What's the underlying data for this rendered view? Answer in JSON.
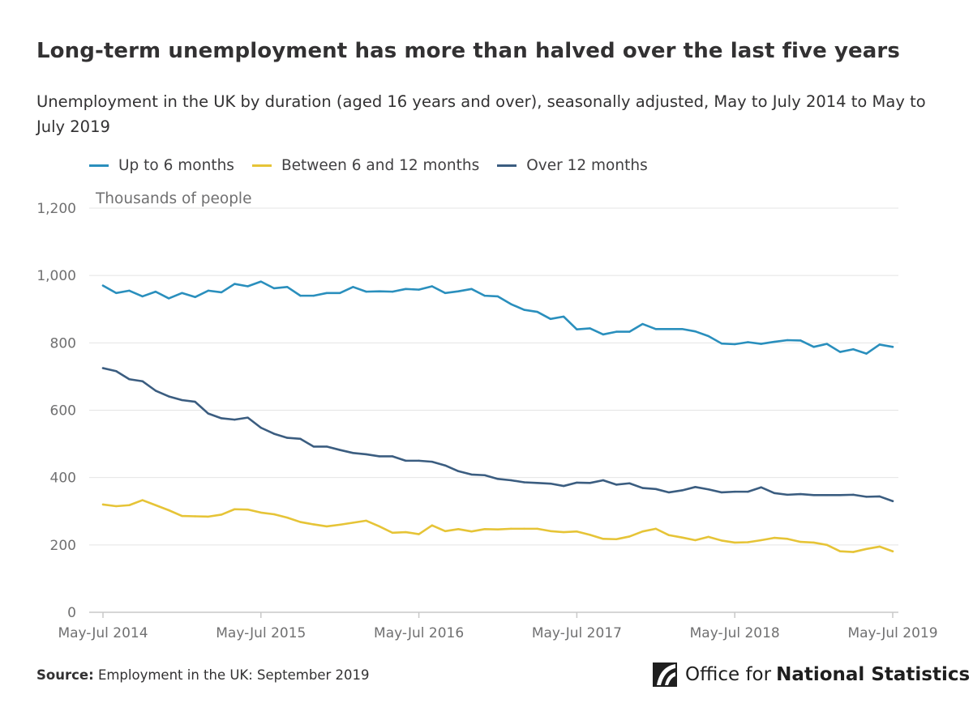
{
  "title": "Long-term unemployment has more than halved over the last five years",
  "subtitle": "Unemployment in the UK by duration (aged 16 years and over), seasonally adjusted, May to July 2014 to May to July 2019",
  "source": {
    "label": "Source:",
    "text": "Employment in the UK: September 2019"
  },
  "logo": {
    "text_light": "Office for",
    "text_bold": "National Statistics"
  },
  "colors": {
    "up_to_6": "#2a8fbd",
    "six_to_12": "#e6c437",
    "over_12": "#3b5d80",
    "grid": "#e4e4e4",
    "axis": "#c8c8c8"
  },
  "chart_data": {
    "type": "line",
    "ylabel": "Thousands of people",
    "ylim": [
      0,
      1200
    ],
    "yticks": [
      0,
      200,
      400,
      600,
      800,
      1000,
      1200
    ],
    "ytick_labels": [
      "0",
      "200",
      "400",
      "600",
      "800",
      "1,000",
      "1,200"
    ],
    "xticks": [
      {
        "index": 0,
        "label": "May-Jul 2014"
      },
      {
        "index": 12,
        "label": "May-Jul 2015"
      },
      {
        "index": 24,
        "label": "May-Jul 2016"
      },
      {
        "index": 36,
        "label": "May-Jul 2017"
      },
      {
        "index": 48,
        "label": "May-Jul 2018"
      },
      {
        "index": 60,
        "label": "May-Jul 2019"
      }
    ],
    "legend_position": "top-left",
    "grid": true,
    "series": [
      {
        "name": "Up to 6 months",
        "color": "#2a8fbd",
        "values": [
          970,
          948,
          955,
          938,
          952,
          932,
          948,
          936,
          955,
          950,
          975,
          968,
          982,
          962,
          966,
          940,
          940,
          948,
          948,
          966,
          952,
          953,
          952,
          960,
          958,
          968,
          948,
          953,
          960,
          940,
          938,
          915,
          898,
          892,
          871,
          878,
          840,
          843,
          825,
          833,
          833,
          856,
          841,
          841,
          841,
          834,
          820,
          798,
          796,
          802,
          797,
          803,
          808,
          807,
          788,
          797,
          773,
          781,
          768,
          795,
          788
        ]
      },
      {
        "name": "Between 6 and 12 months",
        "color": "#e6c437",
        "values": [
          320,
          315,
          318,
          333,
          318,
          303,
          286,
          285,
          284,
          290,
          306,
          305,
          296,
          291,
          281,
          268,
          261,
          255,
          260,
          266,
          272,
          255,
          236,
          238,
          232,
          258,
          241,
          247,
          240,
          247,
          246,
          248,
          248,
          248,
          241,
          238,
          240,
          230,
          218,
          217,
          225,
          240,
          248,
          229,
          222,
          214,
          224,
          213,
          207,
          208,
          214,
          221,
          218,
          209,
          207,
          200,
          181,
          179,
          188,
          195,
          181
        ]
      },
      {
        "name": "Over 12 months",
        "color": "#3b5d80",
        "values": [
          725,
          716,
          692,
          686,
          658,
          641,
          630,
          625,
          590,
          576,
          572,
          578,
          548,
          530,
          518,
          515,
          492,
          492,
          482,
          473,
          469,
          463,
          463,
          450,
          450,
          447,
          436,
          419,
          409,
          407,
          396,
          392,
          386,
          384,
          382,
          375,
          385,
          384,
          392,
          379,
          383,
          369,
          366,
          356,
          362,
          372,
          365,
          356,
          358,
          358,
          371,
          354,
          349,
          351,
          348,
          348,
          348,
          349,
          343,
          344,
          330
        ]
      }
    ]
  }
}
